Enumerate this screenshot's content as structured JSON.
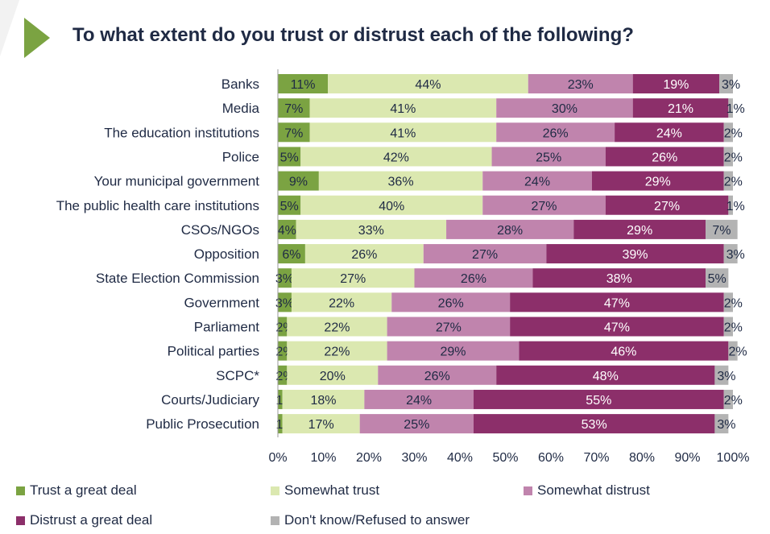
{
  "title": "To what extent do you trust or distrust each of the following?",
  "chart_data": {
    "type": "bar",
    "orientation": "horizontal",
    "stacked": true,
    "categories": [
      "Banks",
      "Media",
      "The education institutions",
      "Police",
      "Your municipal government",
      "The public health care institutions",
      "CSOs/NGOs",
      "Opposition",
      "State Election Commission",
      "Government",
      "Parliament",
      "Political parties",
      "SCPC*",
      "Courts/Judiciary",
      "Public Prosecution"
    ],
    "series": [
      {
        "name": "Trust a great deal",
        "color": "#7ba342",
        "values": [
          11,
          7,
          7,
          5,
          9,
          5,
          4,
          6,
          3,
          3,
          2,
          2,
          2,
          1,
          1
        ]
      },
      {
        "name": "Somewhat trust",
        "color": "#dbe8b0",
        "values": [
          44,
          41,
          41,
          42,
          36,
          40,
          33,
          26,
          27,
          22,
          22,
          22,
          20,
          18,
          17
        ]
      },
      {
        "name": "Somewhat distrust",
        "color": "#c084ad",
        "values": [
          23,
          30,
          26,
          25,
          24,
          27,
          28,
          27,
          26,
          26,
          27,
          29,
          26,
          24,
          25
        ]
      },
      {
        "name": "Distrust a great deal",
        "color": "#8c2f6a",
        "values": [
          19,
          21,
          24,
          26,
          29,
          27,
          29,
          39,
          38,
          47,
          47,
          46,
          48,
          55,
          53
        ]
      },
      {
        "name": "Don't know/Refused to answer",
        "color": "#b3b3b3",
        "values": [
          3,
          1,
          2,
          2,
          2,
          1,
          7,
          3,
          5,
          2,
          2,
          2,
          3,
          2,
          3
        ]
      }
    ],
    "xlim": [
      0,
      100
    ],
    "x_ticks": [
      "0%",
      "10%",
      "20%",
      "30%",
      "40%",
      "50%",
      "60%",
      "70%",
      "80%",
      "90%",
      "100%"
    ],
    "legend_position": "bottom",
    "grid": false
  }
}
